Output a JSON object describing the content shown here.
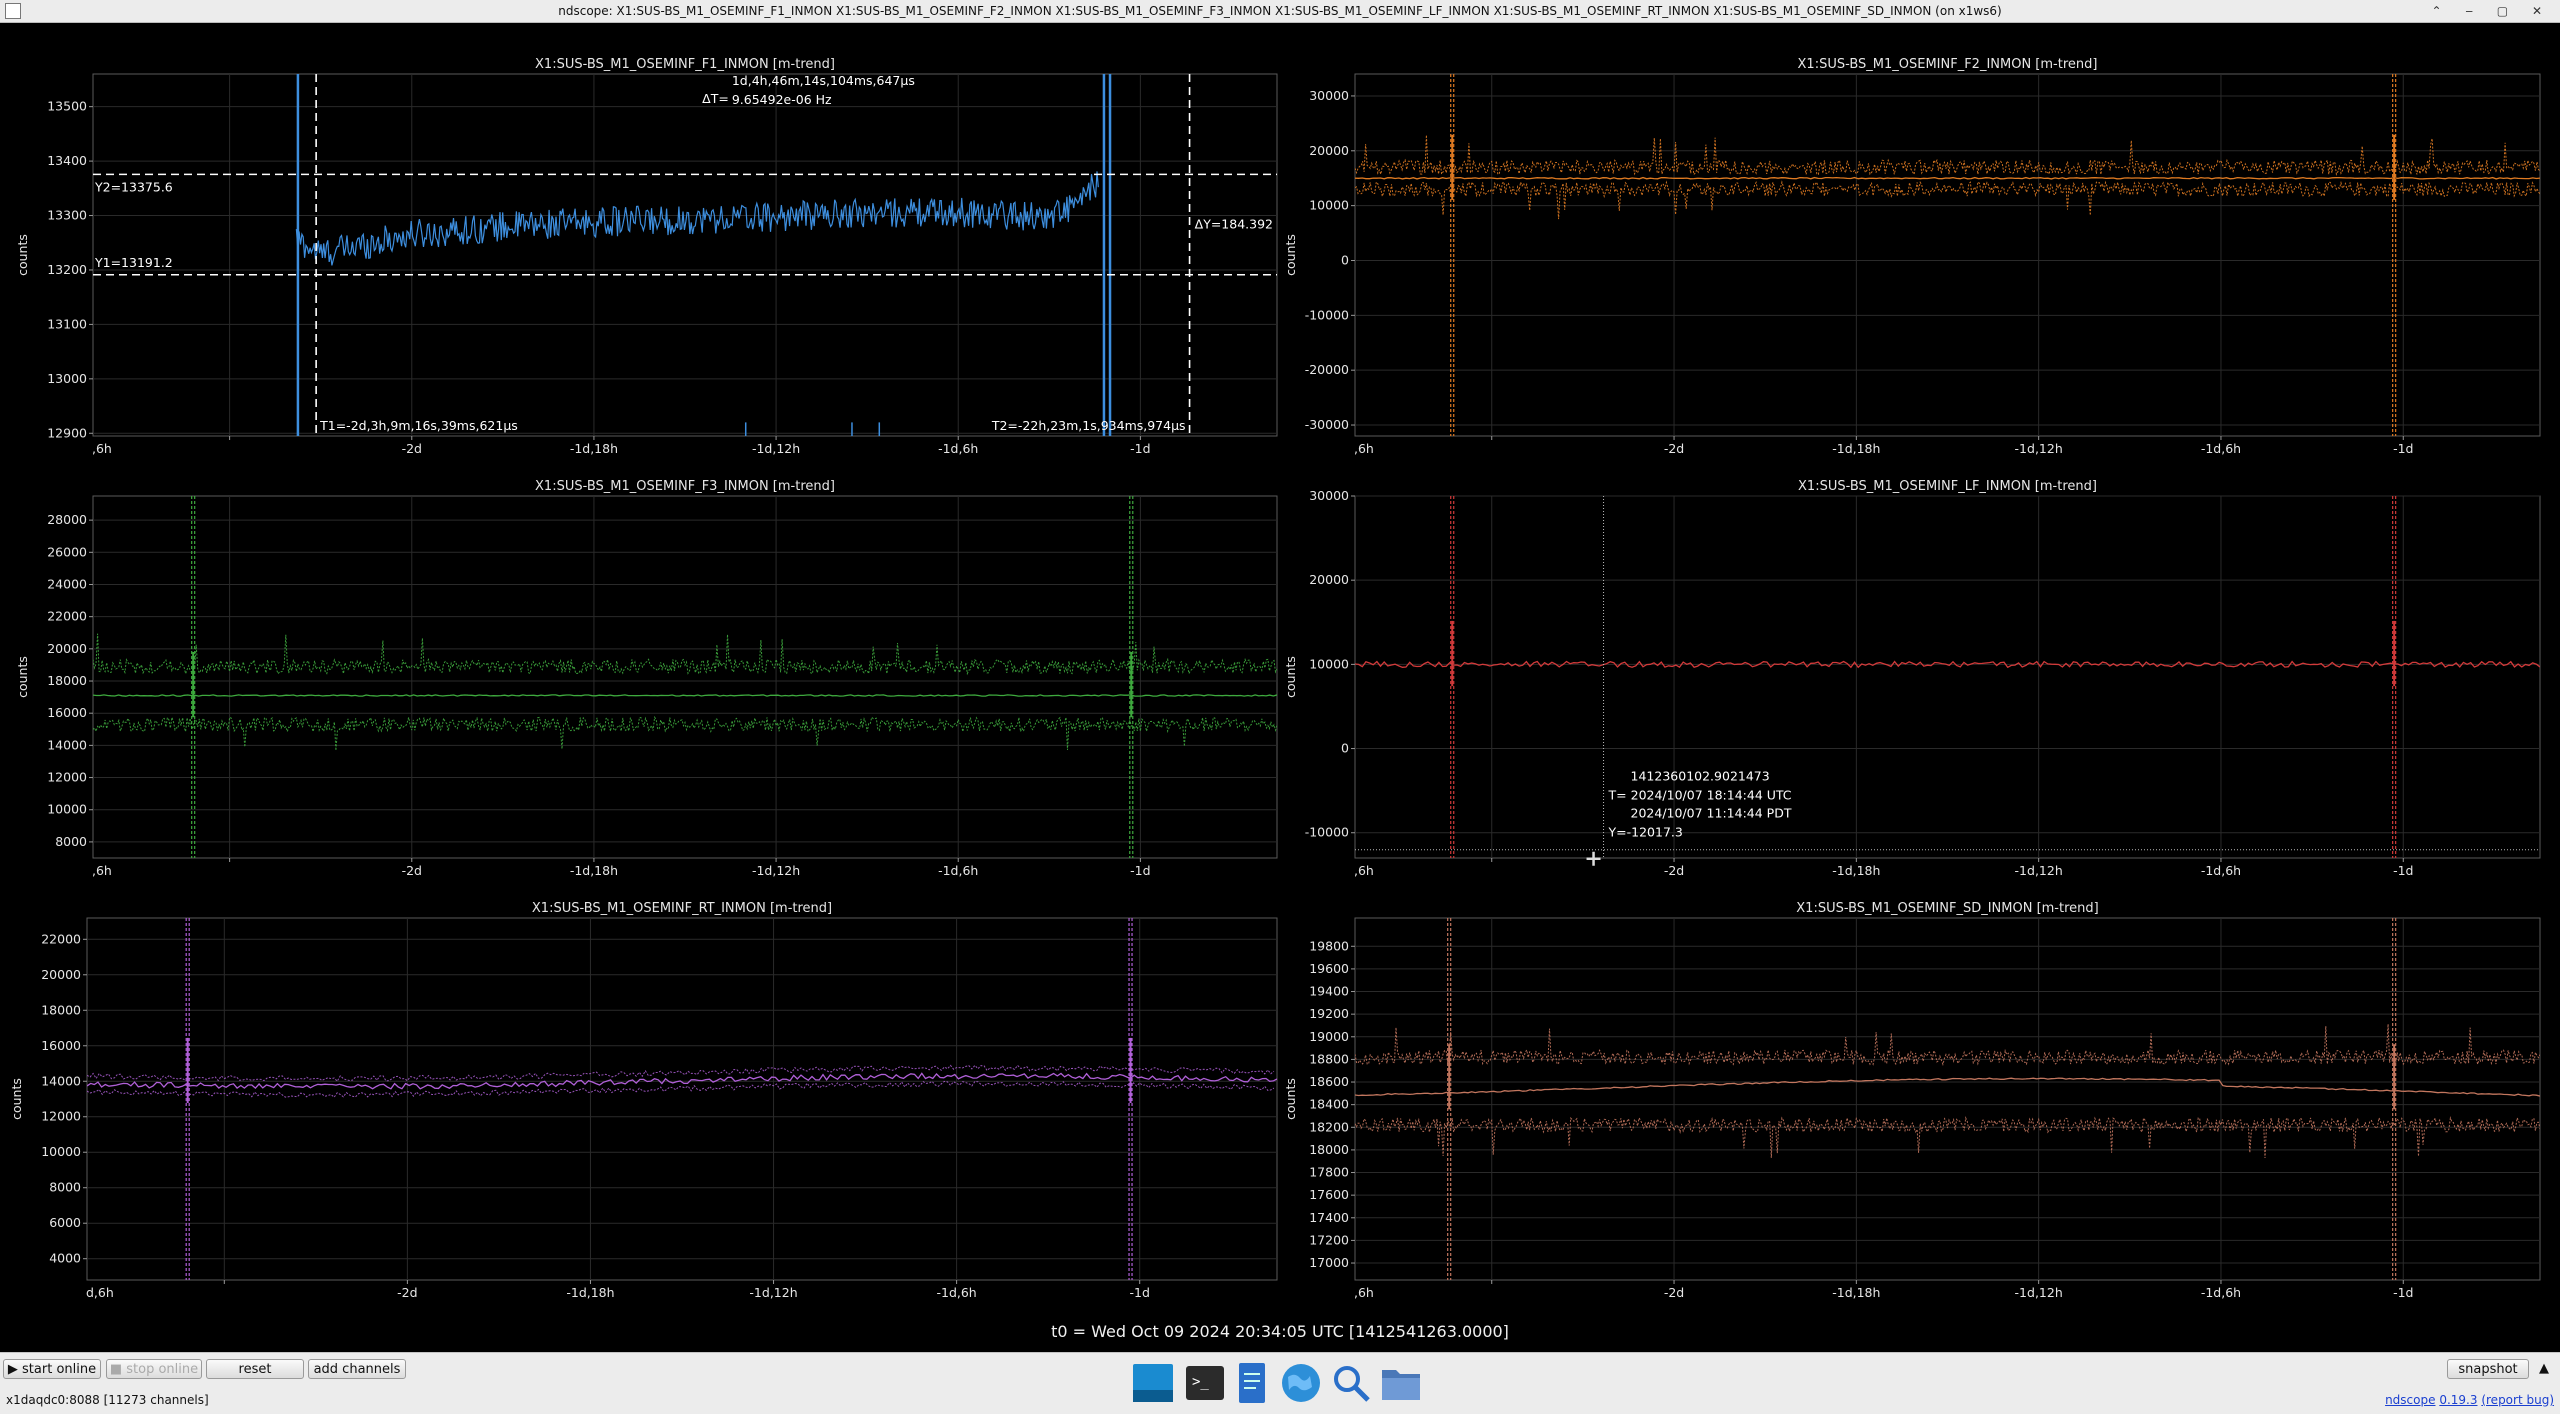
{
  "window": {
    "title": "ndscope: X1:SUS-BS_M1_OSEMINF_F1_INMON X1:SUS-BS_M1_OSEMINF_F2_INMON X1:SUS-BS_M1_OSEMINF_F3_INMON X1:SUS-BS_M1_OSEMINF_LF_INMON X1:SUS-BS_M1_OSEMINF_RT_INMON X1:SUS-BS_M1_OSEMINF_SD_INMON (on x1ws6)"
  },
  "t0_label": "t0 = Wed Oct 09 2024 20:34:05 UTC [1412541263.0000]",
  "toolbar": {
    "start_online": "start online",
    "stop_online": "stop online",
    "reset": "reset",
    "add_channels": "add channels",
    "snapshot": "snapshot"
  },
  "status": {
    "server": "x1daqdc0:8088 [11273 channels]",
    "app": "ndscope",
    "version": "0.19.3",
    "report_bug": "(report bug)"
  },
  "icons": [
    "window-icon",
    "terminal-icon",
    "text-editor-icon",
    "web-browser-icon",
    "search-icon",
    "file-manager-icon"
  ],
  "x_tick_labels": [
    ",6h",
    "-2d",
    "-1d,18h",
    "-1d,12h",
    "-1d,6h",
    "-1d"
  ],
  "x_tick_labels_plot5": [
    "d,6h",
    "-2d",
    "-1d,18h",
    "-1d,12h",
    "-1d,6h",
    "-1d"
  ],
  "ylabel": "counts",
  "chart_data": [
    {
      "type": "line",
      "title": "X1:SUS-BS_M1_OSEMINF_F1_INMON [m-trend]",
      "ylabel": "counts",
      "color": "#3d8ede",
      "xlim_hours": [
        -58.5,
        -19.5
      ],
      "xticks_hours": [
        -54,
        -48,
        -42,
        -36,
        -30,
        -24
      ],
      "ylim": [
        12895,
        13560
      ],
      "yticks": [
        12900,
        13000,
        13100,
        13200,
        13300,
        13400,
        13500
      ],
      "ytick_labels": [
        "12900",
        "13000",
        "13100",
        "13200",
        "13300",
        "13400",
        "13500"
      ],
      "line_x": [
        -51.8,
        -51.0,
        -48,
        -45,
        -42,
        -39,
        -36,
        -33,
        -30,
        -27,
        -26,
        -25.4,
        -25.3,
        -25.0,
        -24.7,
        -24.5
      ],
      "line_y": [
        13255,
        13230,
        13265,
        13280,
        13288,
        13292,
        13298,
        13305,
        13306,
        13298,
        13322,
        13365,
        13160,
        13010,
        12960,
        12920
      ],
      "cursors": {
        "T1": "T1=-2d,3h,9m,16s,39ms,621μs",
        "T2": "T2=-22h,23m,1s,934ms,974μs",
        "DT": "ΔT=",
        "DT_value": "1d,4h,46m,14s,104ms,647μs",
        "DT_freq": "9.65492e-06 Hz",
        "Y1": "Y1=13191.2",
        "Y2": "Y2=13375.6",
        "DY": "ΔY=184.392"
      },
      "cursor_values": {
        "t1_hours": -51.15,
        "t2_hours": -22.38,
        "y1": 13191.2,
        "y2": 13375.6
      }
    },
    {
      "type": "line",
      "title": "X1:SUS-BS_M1_OSEMINF_F2_INMON [m-trend]",
      "ylabel": "counts",
      "color": "#e07b22",
      "xlim_hours": [
        -58.5,
        -19.5
      ],
      "ylim": [
        -32000,
        34000
      ],
      "yticks": [
        -30000,
        -20000,
        -10000,
        0,
        10000,
        20000,
        30000
      ],
      "ytick_labels": [
        "-30000",
        "-20000",
        "-10000",
        "0",
        "10000",
        "20000",
        "30000"
      ],
      "mean": 15000,
      "max_band": 17000,
      "min_band": 13000,
      "glitch_hours": [
        -55.3,
        -24.3
      ]
    },
    {
      "type": "line",
      "title": "X1:SUS-BS_M1_OSEMINF_F3_INMON [m-trend]",
      "ylabel": "counts",
      "color": "#3eaa3e",
      "xlim_hours": [
        -58.5,
        -19.5
      ],
      "ylim": [
        7000,
        29500
      ],
      "yticks": [
        8000,
        10000,
        12000,
        14000,
        16000,
        18000,
        20000,
        22000,
        24000,
        26000,
        28000
      ],
      "ytick_labels": [
        "8000",
        "10000",
        "12000",
        "14000",
        "16000",
        "18000",
        "20000",
        "22000",
        "24000",
        "26000",
        "28000"
      ],
      "mean": 17100,
      "max_band": 18900,
      "min_band": 15300,
      "glitch_hours": [
        -55.2,
        -24.3
      ]
    },
    {
      "type": "line",
      "title": "X1:SUS-BS_M1_OSEMINF_LF_INMON [m-trend]",
      "ylabel": "counts",
      "color": "#d23a3a",
      "xlim_hours": [
        -58.5,
        -19.5
      ],
      "ylim": [
        -13000,
        30000
      ],
      "yticks": [
        -10000,
        0,
        10000,
        20000,
        30000
      ],
      "ytick_labels": [
        "-10000",
        "0",
        "10000",
        "20000",
        "30000"
      ],
      "mean": 10000,
      "glitch_hours": [
        -55.3,
        -24.3
      ],
      "crosshair": {
        "gps": "1412360102.9021473",
        "t_utc": "T= 2024/10/07 18:14:44 UTC",
        "t_pdt": "2024/10/07 11:14:44 PDT",
        "y": "Y=-12017.3"
      },
      "crosshair_values": {
        "t_hours": -50.32,
        "y": -12017.3
      }
    },
    {
      "type": "line",
      "title": "X1:SUS-BS_M1_OSEMINF_RT_INMON [m-trend]",
      "ylabel": "counts",
      "color": "#b060d8",
      "xlim_hours": [
        -58.5,
        -19.5
      ],
      "ylim": [
        2800,
        23200
      ],
      "yticks": [
        4000,
        6000,
        8000,
        10000,
        12000,
        14000,
        16000,
        18000,
        20000,
        22000
      ],
      "ytick_labels": [
        "4000",
        "6000",
        "8000",
        "10000",
        "12000",
        "14000",
        "16000",
        "18000",
        "20000",
        "22000"
      ],
      "mean": 14000,
      "glitch_hours": [
        -55.2,
        -24.3
      ]
    },
    {
      "type": "line",
      "title": "X1:SUS-BS_M1_OSEMINF_SD_INMON [m-trend]",
      "ylabel": "counts",
      "color": "#c2765e",
      "xlim_hours": [
        -58.5,
        -19.5
      ],
      "ylim": [
        16850,
        20050
      ],
      "yticks": [
        17000,
        17200,
        17400,
        17600,
        17800,
        18000,
        18200,
        18400,
        18600,
        18800,
        19000,
        19200,
        19400,
        19600,
        19800
      ],
      "ytick_labels": [
        "17000",
        "17200",
        "17400",
        "17600",
        "17800",
        "18000",
        "18200",
        "18400",
        "18600",
        "18800",
        "19000",
        "19200",
        "19400",
        "19600",
        "19800"
      ],
      "mean": 18550,
      "max_band": 18820,
      "min_band": 18220,
      "glitch_hours": [
        -55.4,
        -24.3
      ]
    }
  ]
}
